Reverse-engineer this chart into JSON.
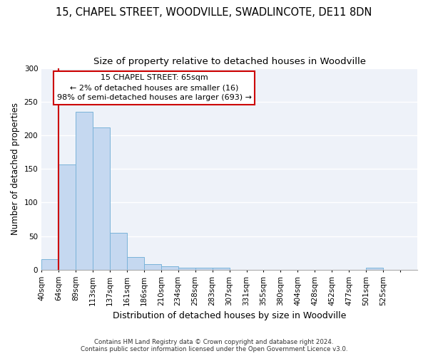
{
  "title1": "15, CHAPEL STREET, WOODVILLE, SWADLINCOTE, DE11 8DN",
  "title2": "Size of property relative to detached houses in Woodville",
  "xlabel": "Distribution of detached houses by size in Woodville",
  "ylabel": "Number of detached properties",
  "bar_values": [
    16,
    157,
    235,
    212,
    55,
    19,
    8,
    5,
    3,
    3,
    3,
    0,
    0,
    0,
    0,
    0,
    0,
    0,
    0,
    3,
    0,
    0
  ],
  "x_labels": [
    "40sqm",
    "64sqm",
    "89sqm",
    "113sqm",
    "137sqm",
    "161sqm",
    "186sqm",
    "210sqm",
    "234sqm",
    "258sqm",
    "283sqm",
    "307sqm",
    "331sqm",
    "355sqm",
    "380sqm",
    "404sqm",
    "428sqm",
    "452sqm",
    "477sqm",
    "501sqm",
    "525sqm",
    ""
  ],
  "bar_color": "#c5d8f0",
  "bar_edge_color": "#7ab3d9",
  "annotation_box_text": "15 CHAPEL STREET: 65sqm\n← 2% of detached houses are smaller (16)\n98% of semi-detached houses are larger (693) →",
  "annotation_line_color": "#cc0000",
  "annotation_box_edge_color": "#cc0000",
  "vline_x_index": 1,
  "ylim": [
    0,
    300
  ],
  "yticks": [
    0,
    50,
    100,
    150,
    200,
    250,
    300
  ],
  "background_color": "#eef2f9",
  "grid_color": "#ffffff",
  "footer_text": "Contains HM Land Registry data © Crown copyright and database right 2024.\nContains public sector information licensed under the Open Government Licence v3.0.",
  "title1_fontsize": 10.5,
  "title2_fontsize": 9.5,
  "xlabel_fontsize": 9,
  "ylabel_fontsize": 8.5,
  "tick_fontsize": 7.5,
  "annot_fontsize": 8
}
